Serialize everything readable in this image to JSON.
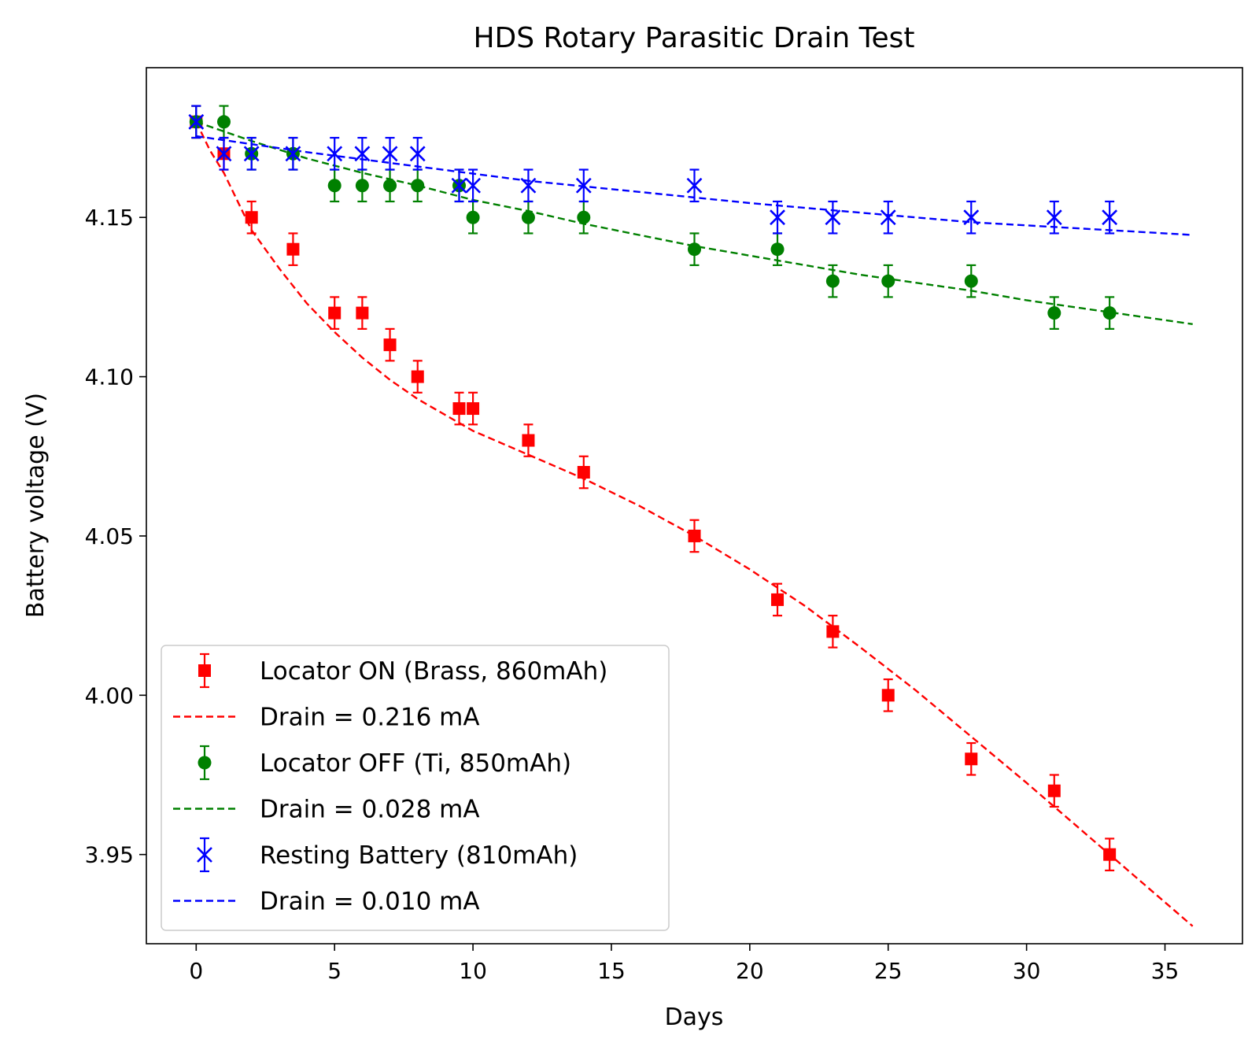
{
  "chart_data": {
    "type": "scatter",
    "title": "HDS Rotary Parasitic Drain Test",
    "xlabel": "Days",
    "ylabel": "Battery voltage (V)",
    "xlim": [
      -1.8,
      37.8
    ],
    "ylim": [
      3.922,
      4.197
    ],
    "x_ticks": [
      0,
      5,
      10,
      15,
      20,
      25,
      30,
      35
    ],
    "y_ticks": [
      3.95,
      4.0,
      4.05,
      4.1,
      4.15
    ],
    "y_tick_labels": [
      "3.95",
      "4.00",
      "4.05",
      "4.10",
      "4.15"
    ],
    "grid": false,
    "legend_position": "lower-left",
    "series": [
      {
        "name": "Locator ON (Brass, 860mAh)",
        "kind": "errorbar",
        "marker": "square",
        "color": "#ff0000",
        "error": 0.005,
        "x": [
          0,
          1,
          2,
          3.5,
          5,
          6,
          7,
          8,
          9.5,
          10,
          12,
          14,
          18,
          21,
          23,
          25,
          28,
          31,
          33
        ],
        "y": [
          4.18,
          4.17,
          4.15,
          4.14,
          4.12,
          4.12,
          4.11,
          4.1,
          4.09,
          4.09,
          4.08,
          4.07,
          4.05,
          4.03,
          4.02,
          4.0,
          3.98,
          3.97,
          3.95
        ]
      },
      {
        "name": "Drain = 0.216 mA",
        "kind": "fit",
        "color": "#ff0000",
        "x": [
          0,
          0.5,
          1,
          2,
          3,
          4,
          5,
          6,
          7,
          8,
          9,
          10,
          12,
          14,
          16,
          18,
          20,
          22,
          24,
          26,
          28,
          30,
          32,
          34,
          36
        ],
        "y": [
          4.18,
          4.171,
          4.164,
          4.146,
          4.134,
          4.123,
          4.114,
          4.106,
          4.099,
          4.093,
          4.088,
          4.083,
          4.0755,
          4.068,
          4.0595,
          4.05,
          4.0395,
          4.028,
          4.015,
          4.0015,
          3.987,
          3.9725,
          3.9575,
          3.9425,
          3.9275
        ]
      },
      {
        "name": "Locator OFF (Ti, 850mAh)",
        "kind": "errorbar",
        "marker": "circle",
        "color": "#008000",
        "error": 0.005,
        "x": [
          0,
          1,
          2,
          3.5,
          5,
          6,
          7,
          8,
          9.5,
          10,
          12,
          14,
          18,
          21,
          23,
          25,
          28,
          31,
          33
        ],
        "y": [
          4.18,
          4.18,
          4.17,
          4.17,
          4.16,
          4.16,
          4.16,
          4.16,
          4.16,
          4.15,
          4.15,
          4.15,
          4.14,
          4.14,
          4.13,
          4.13,
          4.13,
          4.12,
          4.12
        ]
      },
      {
        "name": "Drain = 0.028 mA",
        "kind": "fit",
        "color": "#008000",
        "x": [
          0,
          2,
          4,
          6,
          8,
          10,
          12,
          14,
          16,
          18,
          20,
          22,
          24,
          26,
          28,
          30,
          32,
          34,
          36
        ],
        "y": [
          4.18,
          4.174,
          4.1685,
          4.164,
          4.16,
          4.1555,
          4.152,
          4.148,
          4.1445,
          4.141,
          4.138,
          4.135,
          4.132,
          4.1295,
          4.127,
          4.124,
          4.1215,
          4.119,
          4.1165
        ]
      },
      {
        "name": "Resting Battery (810mAh)",
        "kind": "errorbar",
        "marker": "x",
        "color": "#0000ff",
        "error": 0.005,
        "x": [
          0,
          1,
          2,
          3.5,
          5,
          6,
          7,
          8,
          9.5,
          10,
          12,
          14,
          18,
          21,
          23,
          25,
          28,
          31,
          33
        ],
        "y": [
          4.18,
          4.17,
          4.17,
          4.17,
          4.17,
          4.17,
          4.17,
          4.17,
          4.16,
          4.16,
          4.16,
          4.16,
          4.16,
          4.15,
          4.15,
          4.15,
          4.15,
          4.15,
          4.15
        ]
      },
      {
        "name": "Drain = 0.010 mA",
        "kind": "fit",
        "color": "#0000ff",
        "x": [
          0,
          4,
          8,
          12,
          16,
          20,
          24,
          28,
          32,
          36
        ],
        "y": [
          4.1755,
          4.1705,
          4.166,
          4.1615,
          4.158,
          4.1545,
          4.1515,
          4.1485,
          4.1465,
          4.1445
        ]
      }
    ]
  }
}
